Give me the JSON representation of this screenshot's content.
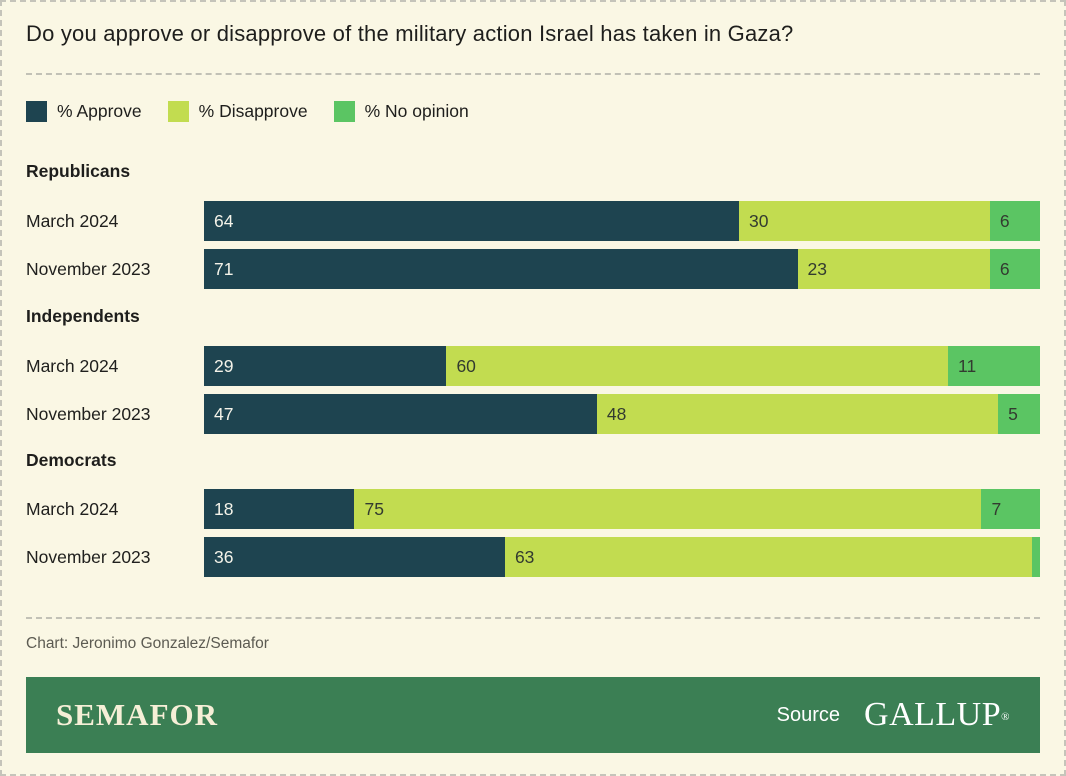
{
  "title": "Do you approve or disapprove of the military action Israel has taken in Gaza?",
  "legend": [
    {
      "label": "% Approve",
      "color": "#1e4450"
    },
    {
      "label": "% Disapprove",
      "color": "#c2dc50"
    },
    {
      "label": "% No opinion",
      "color": "#5bc563"
    }
  ],
  "colors": {
    "background": "#faf7e4",
    "approve": "#1e4450",
    "disapprove": "#c2dc50",
    "no_opinion": "#5bc563",
    "footer_bar": "#3b7f54",
    "value_on_dark": "#f4f3e9",
    "value_on_light": "#333b30"
  },
  "chart_data": {
    "type": "bar",
    "orientation": "horizontal",
    "stacked": true,
    "unit": "percent",
    "xlim": [
      0,
      100
    ],
    "grid": false,
    "legend_position": "top",
    "series_names": [
      "% Approve",
      "% Disapprove",
      "% No opinion"
    ],
    "groups": [
      {
        "name": "Republicans",
        "rows": [
          {
            "label": "March 2024",
            "values": [
              64,
              30,
              6
            ],
            "display": [
              "64",
              "30",
              "6"
            ]
          },
          {
            "label": "November 2023",
            "values": [
              71,
              23,
              6
            ],
            "display": [
              "71",
              "23",
              "6"
            ]
          }
        ]
      },
      {
        "name": "Independents",
        "rows": [
          {
            "label": "March 2024",
            "values": [
              29,
              60,
              11
            ],
            "display": [
              "29",
              "60",
              "11"
            ]
          },
          {
            "label": "November 2023",
            "values": [
              47,
              48,
              5
            ],
            "display": [
              "47",
              "48",
              "5"
            ]
          }
        ]
      },
      {
        "name": "Democrats",
        "rows": [
          {
            "label": "March 2024",
            "values": [
              18,
              75,
              7
            ],
            "display": [
              "18",
              "75",
              "7"
            ]
          },
          {
            "label": "November 2023",
            "values": [
              36,
              63,
              1
            ],
            "display": [
              "36",
              "63",
              ""
            ]
          }
        ]
      }
    ]
  },
  "footer": {
    "credit": "Chart: Jeronimo Gonzalez/Semafor",
    "brand": "SEMAFOR",
    "source_label": "Source",
    "source_name": "GALLUP",
    "trademark": "®"
  }
}
